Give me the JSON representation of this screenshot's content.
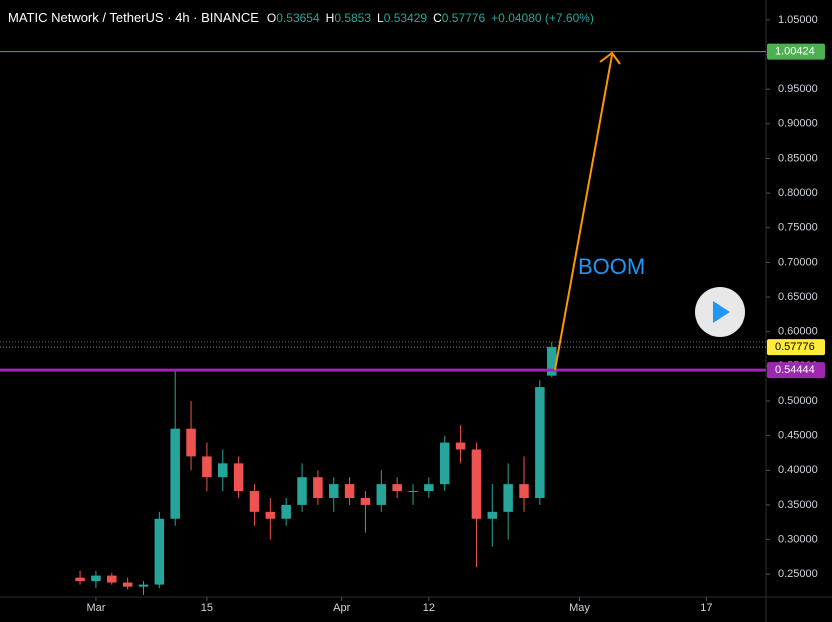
{
  "chart_data": {
    "type": "candlestick",
    "title": "MATIC Network / TetherUS · 4h · BINANCE",
    "ohlc": [
      {
        "label": "O",
        "value": 0.53654
      },
      {
        "label": "H",
        "value": 0.5853
      },
      {
        "label": "L",
        "value": 0.53429
      },
      {
        "label": "C",
        "value": 0.57776
      }
    ],
    "change": "+0.04080 (+7.60%)",
    "annotation": "BOOM",
    "up_color": "#26a69a",
    "down_color": "#ef5350",
    "x": [
      -2,
      0,
      2,
      4,
      6,
      8,
      10,
      12,
      14,
      16,
      18,
      20,
      22,
      24,
      26,
      28,
      30,
      32,
      34,
      36,
      38,
      40,
      42,
      44,
      46,
      48,
      50,
      52,
      54,
      56,
      57.5
    ],
    "open": [
      0.245,
      0.24,
      0.248,
      0.238,
      0.232,
      0.235,
      0.33,
      0.46,
      0.42,
      0.39,
      0.41,
      0.37,
      0.34,
      0.33,
      0.35,
      0.39,
      0.36,
      0.38,
      0.36,
      0.35,
      0.38,
      0.37,
      0.37,
      0.38,
      0.44,
      0.43,
      0.33,
      0.34,
      0.38,
      0.36,
      0.53654
    ],
    "high": [
      0.255,
      0.255,
      0.252,
      0.245,
      0.24,
      0.34,
      0.545,
      0.5,
      0.44,
      0.43,
      0.42,
      0.38,
      0.36,
      0.36,
      0.41,
      0.4,
      0.39,
      0.39,
      0.37,
      0.4,
      0.39,
      0.38,
      0.39,
      0.45,
      0.465,
      0.44,
      0.38,
      0.41,
      0.42,
      0.53,
      0.5853
    ],
    "low": [
      0.235,
      0.23,
      0.235,
      0.228,
      0.22,
      0.23,
      0.32,
      0.4,
      0.37,
      0.37,
      0.36,
      0.32,
      0.3,
      0.32,
      0.34,
      0.35,
      0.34,
      0.35,
      0.31,
      0.34,
      0.36,
      0.35,
      0.36,
      0.37,
      0.41,
      0.26,
      0.29,
      0.3,
      0.34,
      0.35,
      0.53429
    ],
    "close": [
      0.24,
      0.248,
      0.238,
      0.232,
      0.235,
      0.33,
      0.46,
      0.42,
      0.39,
      0.41,
      0.37,
      0.34,
      0.33,
      0.35,
      0.39,
      0.36,
      0.38,
      0.36,
      0.35,
      0.38,
      0.37,
      0.37,
      0.38,
      0.44,
      0.43,
      0.33,
      0.34,
      0.38,
      0.36,
      0.52,
      0.57776
    ],
    "xlim": [
      -12.1,
      84.4
    ],
    "xticks": [
      {
        "value": 0,
        "label": "Mar"
      },
      {
        "value": 14,
        "label": "15"
      },
      {
        "value": 31,
        "label": "Apr"
      },
      {
        "value": 42,
        "label": "12"
      },
      {
        "value": 61,
        "label": "May"
      },
      {
        "value": 77,
        "label": "17"
      }
    ],
    "ylim": [
      0.2171,
      1.0787
    ],
    "yticks": [
      {
        "value": 0.25,
        "label": "0.25000"
      },
      {
        "value": 0.3,
        "label": "0.30000"
      },
      {
        "value": 0.35,
        "label": "0.35000"
      },
      {
        "value": 0.4,
        "label": "0.40000"
      },
      {
        "value": 0.45,
        "label": "0.45000"
      },
      {
        "value": 0.5,
        "label": "0.50000"
      },
      {
        "value": 0.55,
        "label": "0.55000"
      },
      {
        "value": 0.6,
        "label": "0.60000"
      },
      {
        "value": 0.65,
        "label": "0.65000"
      },
      {
        "value": 0.7,
        "label": "0.70000"
      },
      {
        "value": 0.75,
        "label": "0.75000"
      },
      {
        "value": 0.8,
        "label": "0.80000"
      },
      {
        "value": 0.85,
        "label": "0.85000"
      },
      {
        "value": 0.9,
        "label": "0.90000"
      },
      {
        "value": 0.95,
        "label": "0.95000"
      },
      {
        "value": 1.0,
        "label": "1.00000"
      },
      {
        "value": 1.05,
        "label": "1.05000"
      }
    ],
    "levels": [
      {
        "value": 1.00424,
        "color": "#4caf50"
      },
      {
        "value": 0.57776,
        "color": "#ffeb3b"
      },
      {
        "value": 0.54444,
        "color": "#9c27b0"
      }
    ]
  }
}
